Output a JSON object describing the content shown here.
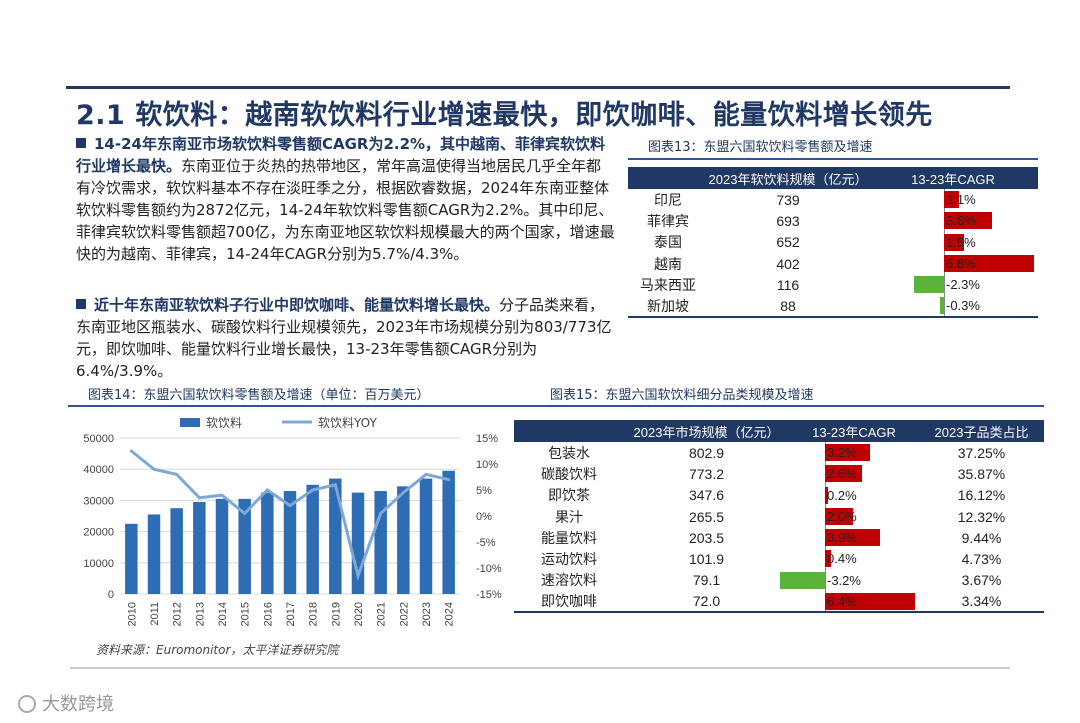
{
  "page": {
    "title": "2.1 软饮料：越南软饮料行业增速最快，即饮咖啡、能量饮料增长领先",
    "para1_bold": "14-24年东南亚市场软饮料零售额CAGR为2.2%，其中越南、菲律宾软饮料行业增长最快。",
    "para1_text": "东南亚位于炎热的热带地区，常年高温使得当地居民几乎全年都有冷饮需求，软饮料基本不存在淡旺季之分，根据欧睿数据，2024年东南亚整体软饮料零售额约为2872亿元，14-24年软饮料零售额CAGR为2.2%。其中印尼、菲律宾软饮料零售额超700亿，为东南亚地区软饮料规模最大的两个国家，增速最快的为越南、菲律宾，14-24年CAGR分别为5.7%/4.3%。",
    "para2_bold": "近十年东南亚软饮料子行业中即饮咖啡、能量饮料增长最快。",
    "para2_text": "分子品类来看，东南亚地区瓶装水、碳酸饮料行业规模领先，2023年市场规模分别为803/773亿元，即饮咖啡、能量饮料行业增长最快，13-23年零售额CAGR分别为6.4%/3.9%。",
    "source": "资料来源：Euromonitor，太平洋证券研究院",
    "watermark": "大数跨境"
  },
  "colors": {
    "navy": "#1f3864",
    "bar_blue": "#2e6db4",
    "line_blue": "#7fa8d8",
    "pos_red": "#c00000",
    "neg_green": "#5bb33a"
  },
  "chart_data": [
    {
      "type": "table",
      "caption": "图表13：东盟六国软饮料零售额及增速",
      "headers": [
        "",
        "2023年软饮料规模（亿元）",
        "13-23年CAGR"
      ],
      "rows": [
        {
          "name": "印尼",
          "size": "739",
          "cagr": 1.1,
          "cagr_label": "1.1%"
        },
        {
          "name": "菲律宾",
          "size": "693",
          "cagr": 3.6,
          "cagr_label": "3.6%"
        },
        {
          "name": "泰国",
          "size": "652",
          "cagr": 1.5,
          "cagr_label": "1.5%"
        },
        {
          "name": "越南",
          "size": "402",
          "cagr": 6.8,
          "cagr_label": "6.8%"
        },
        {
          "name": "马来西亚",
          "size": "116",
          "cagr": -2.3,
          "cagr_label": "-2.3%"
        },
        {
          "name": "新加坡",
          "size": "88",
          "cagr": -0.3,
          "cagr_label": "-0.3%"
        }
      ]
    },
    {
      "type": "bar",
      "caption": "图表14：东盟六国软饮料零售额及增速（单位：百万美元）",
      "categories": [
        "2010",
        "2011",
        "2012",
        "2013",
        "2014",
        "2015",
        "2016",
        "2017",
        "2018",
        "2019",
        "2020",
        "2021",
        "2022",
        "2023",
        "2024"
      ],
      "series": [
        {
          "name": "软饮料",
          "type": "bar",
          "axis": "left",
          "values": [
            22500,
            25500,
            27500,
            29500,
            30500,
            30500,
            32500,
            33000,
            35000,
            37000,
            32500,
            33000,
            34500,
            37000,
            39500
          ]
        },
        {
          "name": "软饮料YOY",
          "type": "line",
          "axis": "right",
          "values": [
            12.5,
            9.0,
            8.0,
            3.5,
            4.0,
            0.5,
            5.0,
            2.0,
            5.0,
            6.0,
            -11.5,
            0.5,
            4.5,
            8.0,
            7.0
          ]
        }
      ],
      "ylim_left": [
        0,
        50000
      ],
      "ylim_right": [
        -15,
        15
      ],
      "left_ticks": [
        "50000",
        "40000",
        "30000",
        "20000",
        "10000",
        "0"
      ],
      "right_ticks": [
        "15%",
        "10%",
        "5%",
        "0%",
        "-5%",
        "-10%",
        "-15%"
      ],
      "grid": true,
      "legend": "top"
    },
    {
      "type": "table",
      "caption": "图表15：东盟六国软饮料细分品类规模及增速",
      "headers": [
        "",
        "2023年市场规模（亿元）",
        "13-23年CAGR",
        "2023子品类占比"
      ],
      "rows": [
        {
          "name": "包装水",
          "size": "802.9",
          "cagr": 3.2,
          "cagr_label": "3.2%",
          "share": "37.25%"
        },
        {
          "name": "碳酸饮料",
          "size": "773.2",
          "cagr": 2.6,
          "cagr_label": "2.6%",
          "share": "35.87%"
        },
        {
          "name": "即饮茶",
          "size": "347.6",
          "cagr": 0.2,
          "cagr_label": "0.2%",
          "share": "16.12%"
        },
        {
          "name": "果汁",
          "size": "265.5",
          "cagr": 2.0,
          "cagr_label": "2.0%",
          "share": "12.32%"
        },
        {
          "name": "能量饮料",
          "size": "203.5",
          "cagr": 3.9,
          "cagr_label": "3.9%",
          "share": "9.44%"
        },
        {
          "name": "运动饮料",
          "size": "101.9",
          "cagr": 0.4,
          "cagr_label": "0.4%",
          "share": "4.73%"
        },
        {
          "name": "速溶饮料",
          "size": "79.1",
          "cagr": -3.2,
          "cagr_label": "-3.2%",
          "share": "3.67%"
        },
        {
          "name": "即饮咖啡",
          "size": "72.0",
          "cagr": 6.4,
          "cagr_label": "6.4%",
          "share": "3.34%"
        }
      ]
    }
  ]
}
